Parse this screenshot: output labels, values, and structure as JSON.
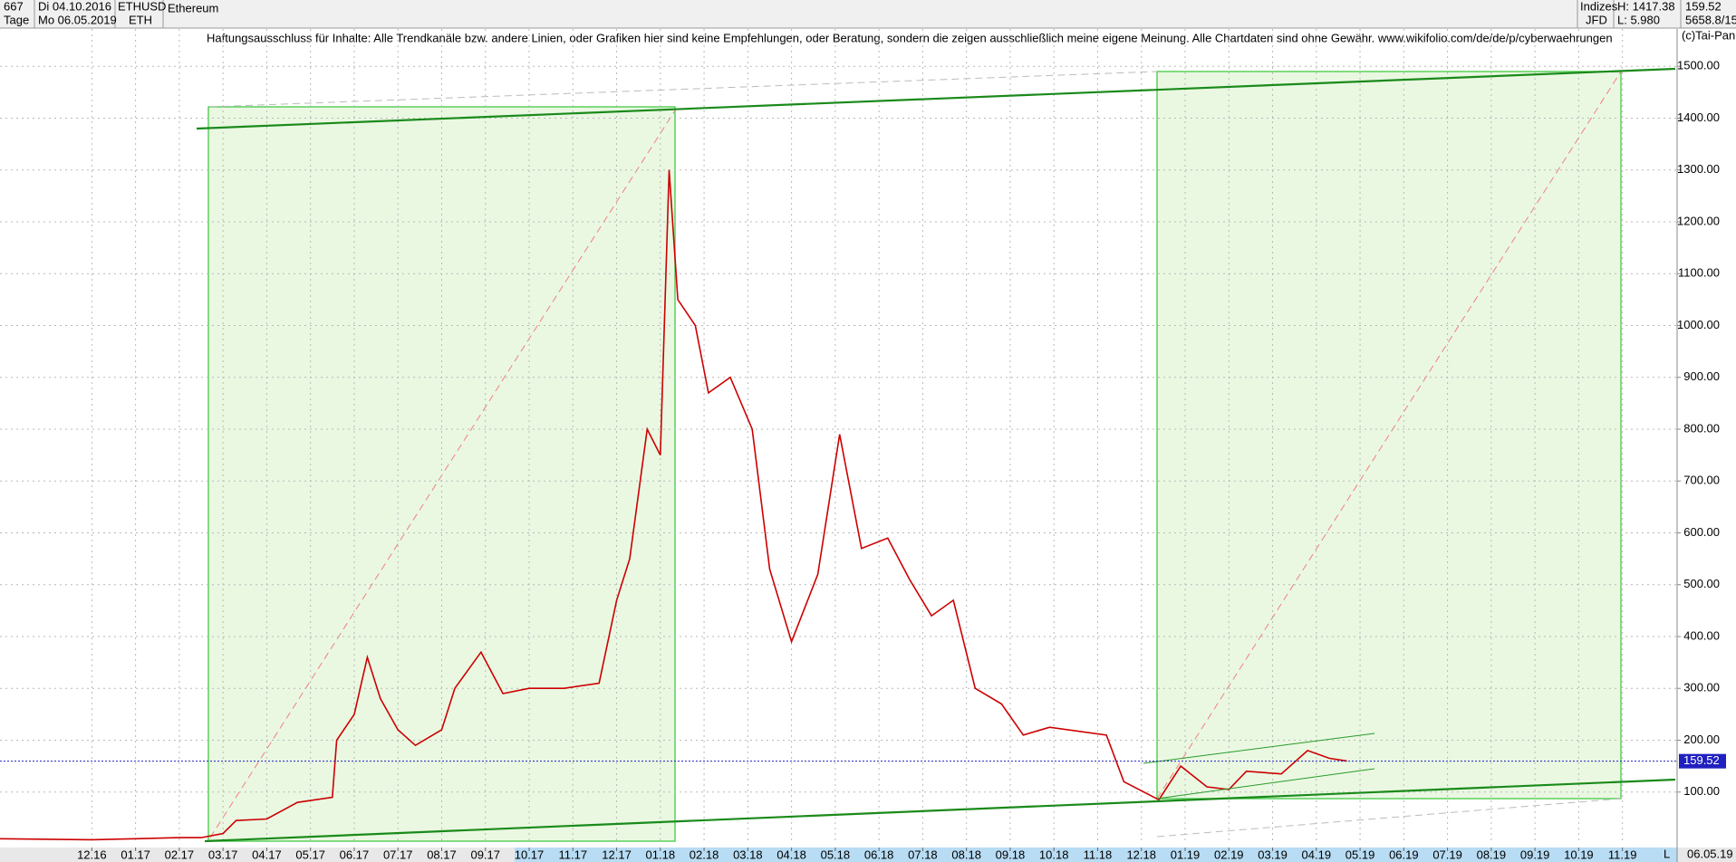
{
  "header": {
    "count": "667",
    "start_date": "Di 04.10.2016",
    "symbol": "ETHUSD",
    "name": "Ethereum",
    "period": "Tage",
    "end_date": "Mo 06.05.2019",
    "short": "ETH",
    "group": "Indizes",
    "high": "H: 1417.38",
    "last": "159.52",
    "source": "JFD",
    "low": "L: 5.980",
    "volume": "5658.8/15",
    "copyright": "(c)Tai-Pan",
    "end_label": "06.05.19",
    "scale_mode": "L"
  },
  "chart_data": {
    "type": "line",
    "annotation": "Haftungsausschluss für Inhalte: Alle Trendkanäle bzw. andere Linien, oder Grafiken hier sind keine Empfehlungen, oder Beratung, sondern die zeigen ausschließlich meine eigene Meinung. Alle Chartdaten sind ohne Gewähr.  www.wikifolio.com/de/de/p/cyberwaehrungen",
    "series": [
      {
        "name": "ETHUSD",
        "color": "#cc0000",
        "x": [
          -2.1,
          0,
          1,
          2,
          2.5,
          3,
          3.3,
          4,
          4.7,
          5.5,
          5.6,
          6,
          6.3,
          6.6,
          7,
          7.4,
          8,
          8.3,
          8.9,
          9.4,
          10,
          10.8,
          11.6,
          12,
          12.3,
          12.7,
          13,
          13.2,
          13.4,
          13.8,
          14.1,
          14.6,
          15.1,
          15.5,
          16,
          16.6,
          17.1,
          17.6,
          18.2,
          18.7,
          19.2,
          19.7,
          20.2,
          20.8,
          21.3,
          21.9,
          23.2,
          23.6,
          24.4,
          24.9,
          25.5,
          26,
          26.4,
          27.2,
          27.8,
          28.3,
          28.7
        ],
        "values": [
          10,
          8,
          10,
          12,
          12,
          20,
          45,
          48,
          80,
          90,
          200,
          250,
          360,
          280,
          220,
          190,
          220,
          300,
          370,
          290,
          300,
          300,
          310,
          470,
          550,
          800,
          750,
          1300,
          1050,
          1000,
          870,
          900,
          800,
          530,
          390,
          520,
          790,
          570,
          590,
          510,
          440,
          470,
          300,
          270,
          210,
          225,
          210,
          120,
          85,
          150,
          110,
          105,
          140,
          135,
          180,
          165,
          160
        ]
      }
    ],
    "last_price": 159.52,
    "xlim": [
      -2.1,
      36.25
    ],
    "xticks": [
      {
        "value": 0,
        "label": "12.16"
      },
      {
        "value": 1,
        "label": "01.17"
      },
      {
        "value": 2,
        "label": "02.17"
      },
      {
        "value": 3,
        "label": "03.17"
      },
      {
        "value": 4,
        "label": "04.17"
      },
      {
        "value": 5,
        "label": "05.17"
      },
      {
        "value": 6,
        "label": "06.17"
      },
      {
        "value": 7,
        "label": "07.17"
      },
      {
        "value": 8,
        "label": "08.17"
      },
      {
        "value": 9,
        "label": "09.17"
      },
      {
        "value": 10,
        "label": "10.17"
      },
      {
        "value": 11,
        "label": "11.17"
      },
      {
        "value": 12,
        "label": "12.17"
      },
      {
        "value": 13,
        "label": "01.18"
      },
      {
        "value": 14,
        "label": "02.18"
      },
      {
        "value": 15,
        "label": "03.18"
      },
      {
        "value": 16,
        "label": "04.18"
      },
      {
        "value": 17,
        "label": "05.18"
      },
      {
        "value": 18,
        "label": "06.18"
      },
      {
        "value": 19,
        "label": "07.18"
      },
      {
        "value": 20,
        "label": "08.18"
      },
      {
        "value": 21,
        "label": "09.18"
      },
      {
        "value": 22,
        "label": "10.18"
      },
      {
        "value": 23,
        "label": "11.18"
      },
      {
        "value": 24,
        "label": "12.18"
      },
      {
        "value": 25,
        "label": "01.19"
      },
      {
        "value": 26,
        "label": "02.19"
      },
      {
        "value": 27,
        "label": "03.19"
      },
      {
        "value": 28,
        "label": "04.19"
      },
      {
        "value": 29,
        "label": "05.19"
      },
      {
        "value": 30,
        "label": "06.19"
      },
      {
        "value": 31,
        "label": "07.19"
      },
      {
        "value": 32,
        "label": "08.19"
      },
      {
        "value": 33,
        "label": "09.19"
      },
      {
        "value": 34,
        "label": "10.19"
      },
      {
        "value": 35,
        "label": "11.19"
      }
    ],
    "ylim": [
      0,
      1572
    ],
    "yticks": [
      {
        "value": 100,
        "label": "100.00"
      },
      {
        "value": 200,
        "label": "200.00"
      },
      {
        "value": 300,
        "label": "300.00"
      },
      {
        "value": 400,
        "label": "400.00"
      },
      {
        "value": 500,
        "label": "500.00"
      },
      {
        "value": 600,
        "label": "600.00"
      },
      {
        "value": 700,
        "label": "700.00"
      },
      {
        "value": 800,
        "label": "800.00"
      },
      {
        "value": 900,
        "label": "900.00"
      },
      {
        "value": 1000,
        "label": "1000.00"
      },
      {
        "value": 1100,
        "label": "1100.00"
      },
      {
        "value": 1200,
        "label": "1200.00"
      },
      {
        "value": 1300,
        "label": "1300.00"
      },
      {
        "value": 1400,
        "label": "1400.00"
      },
      {
        "value": 1500,
        "label": "1500.00"
      }
    ],
    "grid": true
  }
}
